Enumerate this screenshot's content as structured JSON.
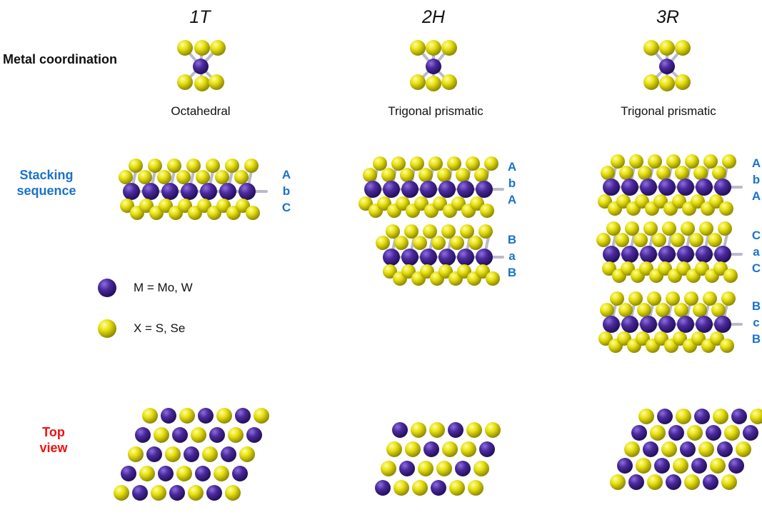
{
  "phases": [
    {
      "title": "1T",
      "coordination": "Octahedral",
      "stacking": [
        [
          "A",
          "b",
          "C"
        ]
      ]
    },
    {
      "title": "2H",
      "coordination": "Trigonal prismatic",
      "stacking": [
        [
          "A",
          "b",
          "A"
        ],
        [
          "B",
          "a",
          "B"
        ]
      ]
    },
    {
      "title": "3R",
      "coordination": "Trigonal prismatic",
      "stacking": [
        [
          "A",
          "b",
          "A"
        ],
        [
          "C",
          "a",
          "C"
        ],
        [
          "B",
          "c",
          "B"
        ]
      ]
    }
  ],
  "rows": {
    "metal_coordination": "Metal coordination",
    "stacking_sequence": "Stacking sequence",
    "top_view": "Top view"
  },
  "legend": [
    {
      "label": "M = Mo, W",
      "atom": "metal"
    },
    {
      "label": "X = S, Se",
      "atom": "chalcogen"
    }
  ],
  "colors": {
    "metal": "#4b2a9c",
    "chalcogen": "#d6cf0a",
    "stacking_letters": "#1a73c9",
    "top_view_label": "#ee1111",
    "stacking_label": "#1a73c9",
    "coordination_label": "#111111"
  }
}
